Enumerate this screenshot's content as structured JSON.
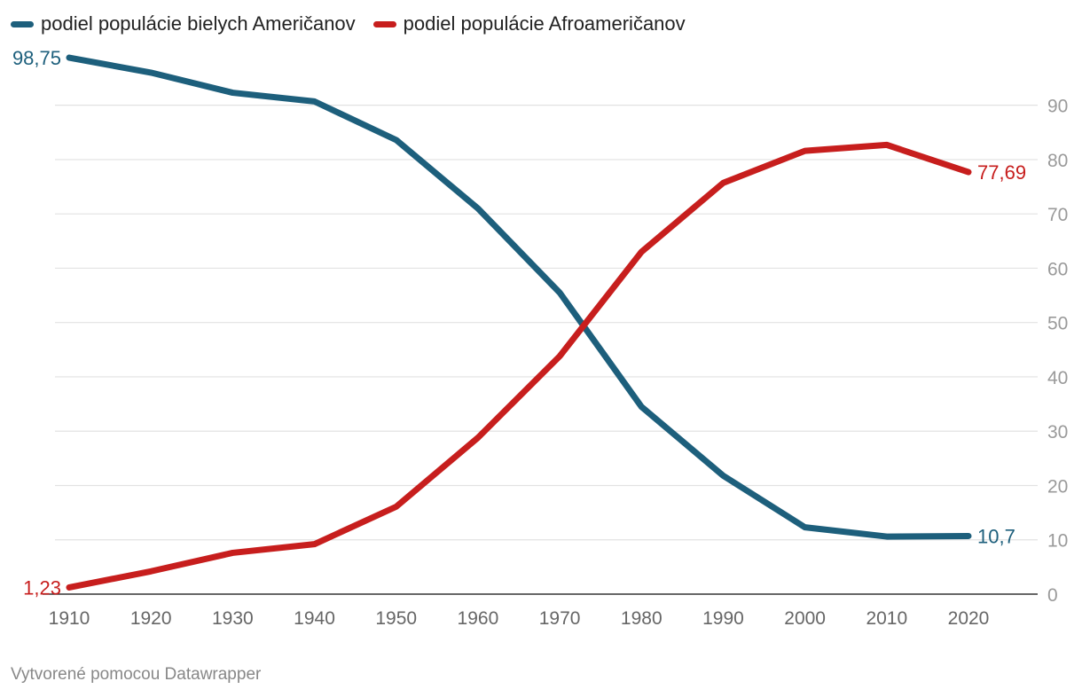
{
  "chart_data": {
    "type": "line",
    "title": "",
    "xlabel": "",
    "ylabel": "",
    "x": [
      1910,
      1920,
      1930,
      1940,
      1950,
      1960,
      1970,
      1980,
      1990,
      2000,
      2010,
      2020
    ],
    "x_tick_labels": [
      "1910",
      "1920",
      "1930",
      "1940",
      "1950",
      "1960",
      "1970",
      "1980",
      "1990",
      "2000",
      "2010",
      "2020"
    ],
    "y_ticks": [
      0,
      10,
      20,
      30,
      40,
      50,
      60,
      70,
      80,
      90
    ],
    "y_tick_labels": [
      "0",
      "10",
      "20",
      "30",
      "40",
      "50",
      "60",
      "70",
      "80",
      "90"
    ],
    "ylim": [
      0,
      100
    ],
    "xlim": [
      1910,
      2029
    ],
    "grid": true,
    "y_axis_position": "right",
    "legend_position": "top-left",
    "series": [
      {
        "name": "podiel populácie bielych Američanov",
        "color": "#1d5f7c",
        "values": [
          98.75,
          96.0,
          92.3,
          90.7,
          83.6,
          71.0,
          55.5,
          34.5,
          21.8,
          12.3,
          10.6,
          10.7
        ],
        "start_label": "98,75",
        "end_label": "10,7"
      },
      {
        "name": "podiel populácie Afroameričanov",
        "color": "#c71e1d",
        "values": [
          1.23,
          4.2,
          7.6,
          9.2,
          16.1,
          28.8,
          43.8,
          63.0,
          75.7,
          81.6,
          82.7,
          77.69
        ],
        "start_label": "1,23",
        "end_label": "77,69"
      }
    ]
  },
  "legend": {
    "items": [
      {
        "label": "podiel populácie bielych Američanov",
        "color": "#1d5f7c"
      },
      {
        "label": "podiel populácie Afroameričanov",
        "color": "#c71e1d"
      }
    ]
  },
  "footer": {
    "credit": "Vytvorené pomocou Datawrapper"
  },
  "colors": {
    "grid": "#e2e2e2",
    "baseline": "#333333",
    "tick_text": "#9a9a9a",
    "x_tick_text": "#666666"
  }
}
